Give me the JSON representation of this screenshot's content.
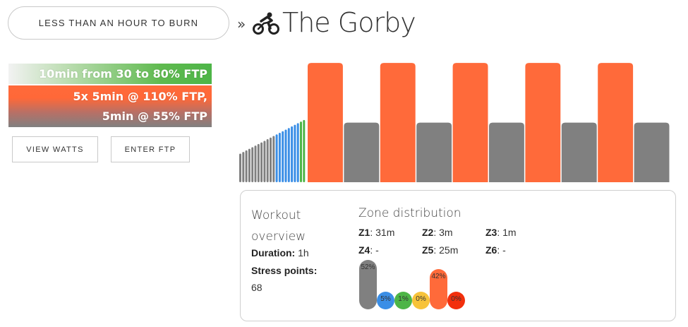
{
  "header": {
    "category_button": "LESS THAN AN HOUR TO BURN",
    "separator": "»",
    "title": "The Gorby"
  },
  "steps": [
    {
      "text": "10min from 30 to 80% FTP"
    },
    {
      "line1": "5x 5min @ 110% FTP,",
      "line2": "5min @ 55% FTP"
    }
  ],
  "buttons": {
    "view_watts": "VIEW WATTS",
    "enter_ftp": "ENTER FTP"
  },
  "colors": {
    "gray": "#808080",
    "blue": "#3a8ee6",
    "green": "#4db547",
    "yellow": "#f7c33a",
    "orange": "#ff6a3a",
    "red": "#f22f0c"
  },
  "chart_data": {
    "type": "bar",
    "xlabel": "",
    "ylabel": "",
    "warmup": {
      "ftp_percent": [
        30,
        35,
        40,
        45,
        50,
        55,
        60,
        65,
        70,
        75,
        80
      ],
      "zones": [
        "Z1",
        "Z1",
        "Z1",
        "Z1",
        "Z1",
        "Z1",
        "Z2",
        "Z2",
        "Z2",
        "Z2",
        "Z3"
      ]
    },
    "intervals": [
      {
        "ftp_percent": 110,
        "minutes": 5
      },
      {
        "ftp_percent": 55,
        "minutes": 5
      },
      {
        "ftp_percent": 110,
        "minutes": 5
      },
      {
        "ftp_percent": 55,
        "minutes": 5
      },
      {
        "ftp_percent": 110,
        "minutes": 5
      },
      {
        "ftp_percent": 55,
        "minutes": 5
      },
      {
        "ftp_percent": 110,
        "minutes": 5
      },
      {
        "ftp_percent": 55,
        "minutes": 5
      },
      {
        "ftp_percent": 110,
        "minutes": 5
      },
      {
        "ftp_percent": 55,
        "minutes": 5
      }
    ]
  },
  "overview": {
    "title": "Workout overview",
    "duration_label": "Duration:",
    "duration_value": "1h",
    "stress_label": "Stress points:",
    "stress_value": "68"
  },
  "zones": {
    "title": "Zone distribution",
    "items": [
      {
        "label": "Z1",
        "value": "31m"
      },
      {
        "label": "Z2",
        "value": "3m"
      },
      {
        "label": "Z3",
        "value": "1m"
      },
      {
        "label": "Z4",
        "value": "-"
      },
      {
        "label": "Z5",
        "value": "25m"
      },
      {
        "label": "Z6",
        "value": "-"
      }
    ],
    "distribution": [
      {
        "percent": 52,
        "label": "52%",
        "color": "#808080"
      },
      {
        "percent": 5,
        "label": "5%",
        "color": "#3a8ee6"
      },
      {
        "percent": 1,
        "label": "1%",
        "color": "#4db547"
      },
      {
        "percent": 0,
        "label": "0%",
        "color": "#f7c33a"
      },
      {
        "percent": 42,
        "label": "42%",
        "color": "#ff6a3a"
      },
      {
        "percent": 0,
        "label": "0%",
        "color": "#f22f0c"
      }
    ]
  }
}
